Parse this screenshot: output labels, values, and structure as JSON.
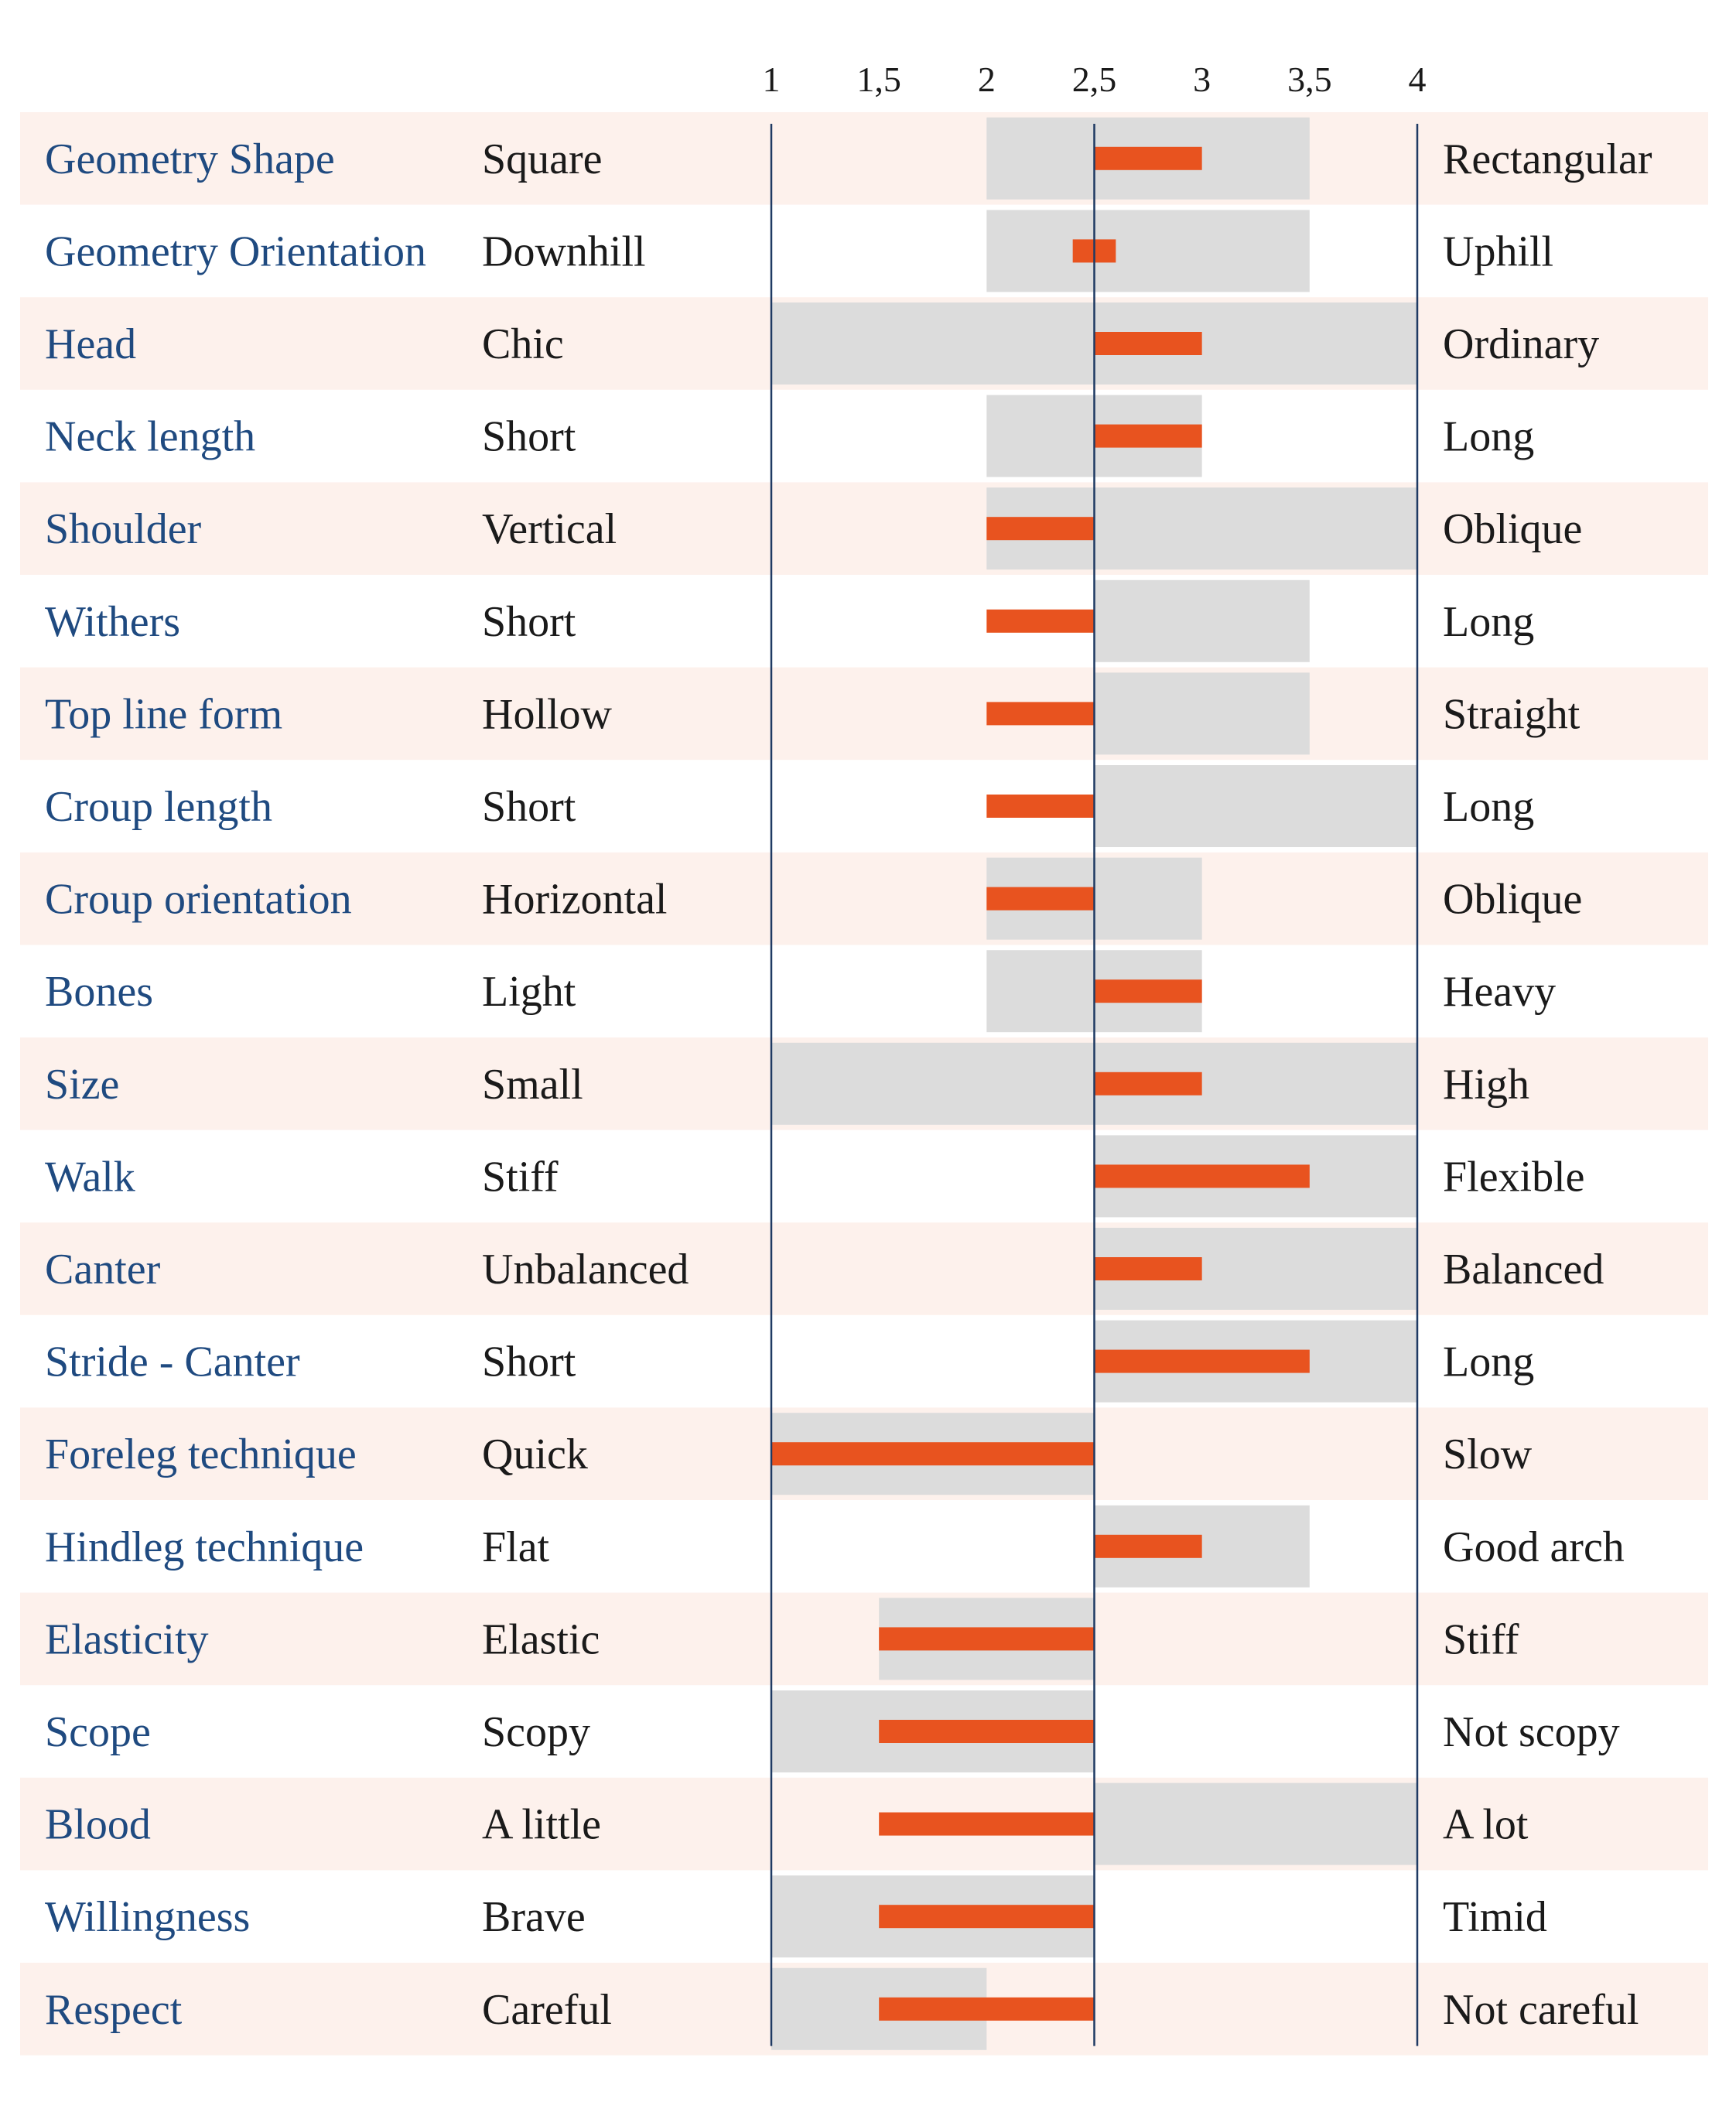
{
  "chart_data": {
    "type": "bar",
    "x_axis": {
      "ticks": [
        "1",
        "1,5",
        "2",
        "2,5",
        "3",
        "3,5",
        "4"
      ],
      "range": [
        1,
        4
      ],
      "reference": 2.5
    },
    "colors": {
      "trait_text": "#1f4a80",
      "pole_text": "#1a1a1a",
      "band": "#dcdcdc",
      "bar": "#e8531f",
      "stripe": "#fdf1ec",
      "axis_line": "#1f3a63"
    },
    "rows": [
      {
        "trait": "Geometry Shape",
        "low": "Square",
        "high": "Rectangular",
        "range": [
          2,
          3.5
        ],
        "value": 3
      },
      {
        "trait": "Geometry Orientation",
        "low": "Downhill",
        "high": "Uphill",
        "range": [
          2,
          3.5
        ],
        "value": 2.6,
        "bar_from": 2.4
      },
      {
        "trait": "Head",
        "low": "Chic",
        "high": "Ordinary",
        "range": [
          1,
          4
        ],
        "value": 3
      },
      {
        "trait": "Neck length",
        "low": "Short",
        "high": "Long",
        "range": [
          2,
          3
        ],
        "value": 3
      },
      {
        "trait": "Shoulder",
        "low": "Vertical",
        "high": "Oblique",
        "range": [
          2,
          4
        ],
        "value": 2
      },
      {
        "trait": "Withers",
        "low": "Short",
        "high": "Long",
        "range": [
          2.5,
          3.5
        ],
        "value": 2
      },
      {
        "trait": "Top line form",
        "low": "Hollow",
        "high": "Straight",
        "range": [
          2.5,
          3.5
        ],
        "value": 2
      },
      {
        "trait": "Croup length",
        "low": "Short",
        "high": "Long",
        "range": [
          2.5,
          4
        ],
        "value": 2
      },
      {
        "trait": "Croup orientation",
        "low": "Horizontal",
        "high": "Oblique",
        "range": [
          2,
          3
        ],
        "value": 2
      },
      {
        "trait": "Bones",
        "low": "Light",
        "high": "Heavy",
        "range": [
          2,
          3
        ],
        "value": 3
      },
      {
        "trait": "Size",
        "low": "Small",
        "high": "High",
        "range": [
          1,
          4
        ],
        "value": 3
      },
      {
        "trait": "Walk",
        "low": "Stiff",
        "high": "Flexible",
        "range": [
          2.5,
          4
        ],
        "value": 3.5
      },
      {
        "trait": "Canter",
        "low": "Unbalanced",
        "high": "Balanced",
        "range": [
          2.5,
          4
        ],
        "value": 3
      },
      {
        "trait": "Stride - Canter",
        "low": "Short",
        "high": "Long",
        "range": [
          2.5,
          4
        ],
        "value": 3.5
      },
      {
        "trait": "Foreleg technique",
        "low": "Quick",
        "high": "Slow",
        "range": [
          1,
          2.5
        ],
        "value": 1
      },
      {
        "trait": "Hindleg technique",
        "low": "Flat",
        "high": "Good arch",
        "range": [
          2.5,
          3.5
        ],
        "value": 3
      },
      {
        "trait": "Elasticity",
        "low": "Elastic",
        "high": "Stiff",
        "range": [
          1.5,
          2.5
        ],
        "value": 1.5
      },
      {
        "trait": "Scope",
        "low": "Scopy",
        "high": "Not scopy",
        "range": [
          1,
          2.5
        ],
        "value": 1.5
      },
      {
        "trait": "Blood",
        "low": "A little",
        "high": "A lot",
        "range": [
          2.5,
          4
        ],
        "value": 1.5
      },
      {
        "trait": "Willingness",
        "low": "Brave",
        "high": "Timid",
        "range": [
          1,
          2.5
        ],
        "value": 1.5
      },
      {
        "trait": "Respect",
        "low": "Careful",
        "high": "Not careful",
        "range": [
          1,
          2
        ],
        "value": 1.5
      }
    ]
  }
}
